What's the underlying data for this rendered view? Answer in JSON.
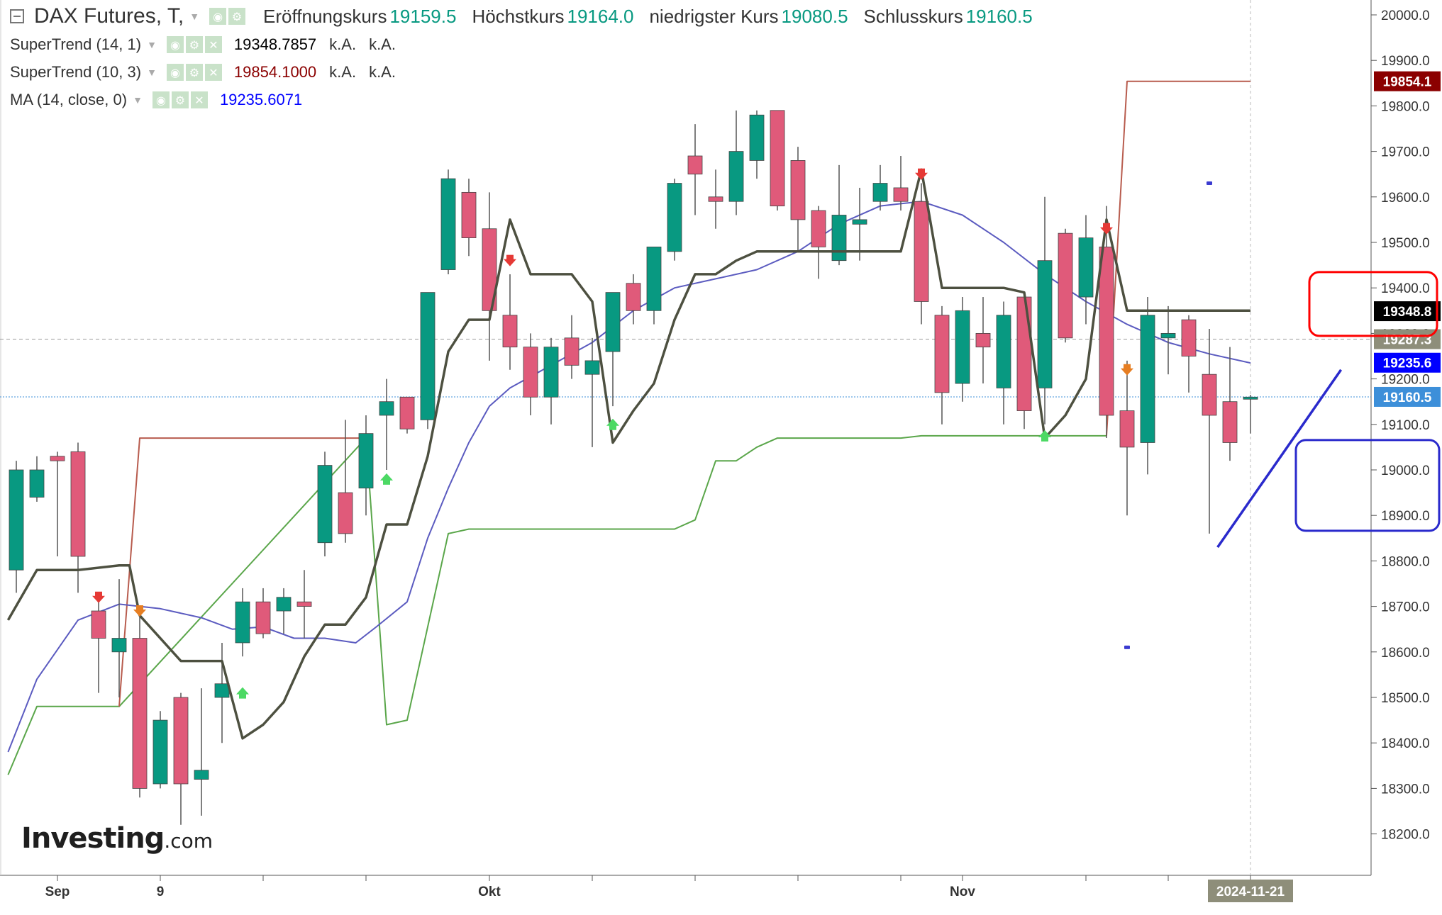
{
  "header": {
    "symbol": "DAX Futures, T,",
    "open_label": "Eröffnungskurs",
    "open": "19159.5",
    "high_label": "Höchstkurs",
    "high": "19164.0",
    "low_label": "niedrigster Kurs",
    "low": "19080.5",
    "close_label": "Schlusskurs",
    "close": "19160.5"
  },
  "indicators": [
    {
      "name": "SuperTrend (14, 1)",
      "value": "19348.7857",
      "na1": "k.A.",
      "na2": "k.A.",
      "color": "#000000"
    },
    {
      "name": "SuperTrend (10, 3)",
      "value": "19854.1000",
      "na1": "k.A.",
      "na2": "k.A.",
      "color": "#8b0000"
    },
    {
      "name": "MA (14, close, 0)",
      "value": "19235.6071",
      "color": "#0000ff"
    }
  ],
  "logo": {
    "main": "Investing",
    "suffix": ".com"
  },
  "colors": {
    "up": "#089981",
    "down": "#e05a7a",
    "ma": "#5b5bc0",
    "st1": "#4d5040",
    "st2_up": "#5aa64a",
    "st2_down": "#b85c4e",
    "current_price": "#3d8fd9",
    "box_red": "#ff0000",
    "box_blue": "#2a2acc"
  },
  "chart_data": {
    "type": "candlestick",
    "title": "DAX Futures, T",
    "x_ticks": [
      {
        "label": "Sep",
        "index": 2
      },
      {
        "label": "9",
        "index": 7
      },
      {
        "label": "Okt",
        "index": 23
      },
      {
        "label": "Nov",
        "index": 46
      },
      {
        "label": "2024-11-21",
        "index": 60
      }
    ],
    "ylim": [
      18100,
      20050
    ],
    "y_ticks": [
      18200,
      18300,
      18400,
      18500,
      18600,
      18700,
      18800,
      18900,
      19000,
      19100,
      19200,
      19300,
      19400,
      19500,
      19600,
      19700,
      19800,
      19900,
      20000
    ],
    "y_tick_labels": [
      "18200.0",
      "18300.0",
      "18400.0",
      "18500.0",
      "18600.0",
      "18700.0",
      "18800.0",
      "18900.0",
      "19000.0",
      "19100.0",
      "19200.0",
      "19300.0",
      "19400.0",
      "19500.0",
      "19600.0",
      "19700.0",
      "19800.0",
      "19900.0",
      "20000.0"
    ],
    "candles": [
      {
        "o": 18780,
        "h": 19020,
        "l": 18730,
        "c": 19000
      },
      {
        "o": 18940,
        "h": 19030,
        "l": 18930,
        "c": 19000
      },
      {
        "o": 19030,
        "h": 19040,
        "l": 18810,
        "c": 19020
      },
      {
        "o": 19040,
        "h": 19060,
        "l": 18730,
        "c": 18810
      },
      {
        "o": 18690,
        "h": 18720,
        "l": 18510,
        "c": 18630
      },
      {
        "o": 18600,
        "h": 18760,
        "l": 18500,
        "c": 18630
      },
      {
        "o": 18630,
        "h": 18680,
        "l": 18280,
        "c": 18300
      },
      {
        "o": 18310,
        "h": 18470,
        "l": 18300,
        "c": 18450
      },
      {
        "o": 18500,
        "h": 18510,
        "l": 18220,
        "c": 18310
      },
      {
        "o": 18320,
        "h": 18520,
        "l": 18240,
        "c": 18340
      },
      {
        "o": 18500,
        "h": 18620,
        "l": 18400,
        "c": 18530
      },
      {
        "o": 18620,
        "h": 18740,
        "l": 18590,
        "c": 18710
      },
      {
        "o": 18710,
        "h": 18740,
        "l": 18630,
        "c": 18640
      },
      {
        "o": 18690,
        "h": 18740,
        "l": 18640,
        "c": 18720
      },
      {
        "o": 18710,
        "h": 18780,
        "l": 18630,
        "c": 18700
      },
      {
        "o": 18840,
        "h": 19040,
        "l": 18810,
        "c": 19010
      },
      {
        "o": 18950,
        "h": 19110,
        "l": 18840,
        "c": 18860
      },
      {
        "o": 18960,
        "h": 19120,
        "l": 18900,
        "c": 19080
      },
      {
        "o": 19120,
        "h": 19200,
        "l": 19000,
        "c": 19150
      },
      {
        "o": 19160,
        "h": 19160,
        "l": 19080,
        "c": 19090
      },
      {
        "o": 19110,
        "h": 19390,
        "l": 19090,
        "c": 19390
      },
      {
        "o": 19440,
        "h": 19660,
        "l": 19430,
        "c": 19640
      },
      {
        "o": 19610,
        "h": 19640,
        "l": 19470,
        "c": 19510
      },
      {
        "o": 19530,
        "h": 19610,
        "l": 19240,
        "c": 19350
      },
      {
        "o": 19340,
        "h": 19430,
        "l": 19220,
        "c": 19270
      },
      {
        "o": 19270,
        "h": 19300,
        "l": 19120,
        "c": 19160
      },
      {
        "o": 19160,
        "h": 19290,
        "l": 19100,
        "c": 19270
      },
      {
        "o": 19290,
        "h": 19340,
        "l": 19200,
        "c": 19230
      },
      {
        "o": 19210,
        "h": 19290,
        "l": 19050,
        "c": 19240
      },
      {
        "o": 19260,
        "h": 19390,
        "l": 19140,
        "c": 19390
      },
      {
        "o": 19410,
        "h": 19430,
        "l": 19320,
        "c": 19350
      },
      {
        "o": 19350,
        "h": 19490,
        "l": 19320,
        "c": 19490
      },
      {
        "o": 19480,
        "h": 19640,
        "l": 19460,
        "c": 19630
      },
      {
        "o": 19690,
        "h": 19760,
        "l": 19560,
        "c": 19650
      },
      {
        "o": 19600,
        "h": 19660,
        "l": 19530,
        "c": 19590
      },
      {
        "o": 19590,
        "h": 19790,
        "l": 19560,
        "c": 19700
      },
      {
        "o": 19680,
        "h": 19790,
        "l": 19640,
        "c": 19780
      },
      {
        "o": 19790,
        "h": 19790,
        "l": 19570,
        "c": 19580
      },
      {
        "o": 19680,
        "h": 19710,
        "l": 19480,
        "c": 19550
      },
      {
        "o": 19570,
        "h": 19580,
        "l": 19420,
        "c": 19490
      },
      {
        "o": 19460,
        "h": 19670,
        "l": 19450,
        "c": 19560
      },
      {
        "o": 19540,
        "h": 19620,
        "l": 19460,
        "c": 19550
      },
      {
        "o": 19590,
        "h": 19670,
        "l": 19570,
        "c": 19630
      },
      {
        "o": 19620,
        "h": 19690,
        "l": 19570,
        "c": 19590
      },
      {
        "o": 19590,
        "h": 19630,
        "l": 19320,
        "c": 19370
      },
      {
        "o": 19340,
        "h": 19360,
        "l": 19100,
        "c": 19170
      },
      {
        "o": 19190,
        "h": 19380,
        "l": 19150,
        "c": 19350
      },
      {
        "o": 19300,
        "h": 19380,
        "l": 19190,
        "c": 19270
      },
      {
        "o": 19180,
        "h": 19370,
        "l": 19100,
        "c": 19340
      },
      {
        "o": 19380,
        "h": 19390,
        "l": 19090,
        "c": 19130
      },
      {
        "o": 19180,
        "h": 19600,
        "l": 19100,
        "c": 19460
      },
      {
        "o": 19520,
        "h": 19530,
        "l": 19280,
        "c": 19290
      },
      {
        "o": 19380,
        "h": 19560,
        "l": 19320,
        "c": 19510
      },
      {
        "o": 19490,
        "h": 19580,
        "l": 19070,
        "c": 19120
      },
      {
        "o": 19130,
        "h": 19240,
        "l": 18900,
        "c": 19050
      },
      {
        "o": 19060,
        "h": 19380,
        "l": 18990,
        "c": 19340
      },
      {
        "o": 19290,
        "h": 19360,
        "l": 19210,
        "c": 19300
      },
      {
        "o": 19330,
        "h": 19340,
        "l": 19170,
        "c": 19250
      },
      {
        "o": 19210,
        "h": 19310,
        "l": 18860,
        "c": 19120
      },
      {
        "o": 19150,
        "h": 19270,
        "l": 19020,
        "c": 19060
      },
      {
        "o": 19160,
        "h": 19165,
        "l": 19080,
        "c": 19160
      }
    ],
    "ma_14": [
      {
        "i": -0.4,
        "v": 18380
      },
      {
        "i": 1,
        "v": 18540
      },
      {
        "i": 3,
        "v": 18670
      },
      {
        "i": 5,
        "v": 18705
      },
      {
        "i": 7,
        "v": 18695
      },
      {
        "i": 9,
        "v": 18675
      },
      {
        "i": 10.5,
        "v": 18650
      },
      {
        "i": 12,
        "v": 18655
      },
      {
        "i": 13.5,
        "v": 18630
      },
      {
        "i": 15,
        "v": 18630
      },
      {
        "i": 16.5,
        "v": 18620
      },
      {
        "i": 17.5,
        "v": 18655
      },
      {
        "i": 19,
        "v": 18710
      },
      {
        "i": 20,
        "v": 18850
      },
      {
        "i": 21,
        "v": 18960
      },
      {
        "i": 22,
        "v": 19060
      },
      {
        "i": 23,
        "v": 19140
      },
      {
        "i": 24,
        "v": 19180
      },
      {
        "i": 26,
        "v": 19230
      },
      {
        "i": 28,
        "v": 19280
      },
      {
        "i": 30,
        "v": 19350
      },
      {
        "i": 32,
        "v": 19400
      },
      {
        "i": 34,
        "v": 19420
      },
      {
        "i": 36,
        "v": 19440
      },
      {
        "i": 38,
        "v": 19480
      },
      {
        "i": 40,
        "v": 19540
      },
      {
        "i": 42,
        "v": 19580
      },
      {
        "i": 44,
        "v": 19590
      },
      {
        "i": 46,
        "v": 19560
      },
      {
        "i": 48,
        "v": 19500
      },
      {
        "i": 50,
        "v": 19430
      },
      {
        "i": 52,
        "v": 19370
      },
      {
        "i": 54,
        "v": 19320
      },
      {
        "i": 56,
        "v": 19280
      },
      {
        "i": 58,
        "v": 19255
      },
      {
        "i": 60,
        "v": 19235
      }
    ],
    "supertrend_14_1": [
      {
        "i": -0.4,
        "v": 18670
      },
      {
        "i": 1,
        "v": 18780
      },
      {
        "i": 3,
        "v": 18780
      },
      {
        "i": 5,
        "v": 18790
      },
      {
        "i": 5.5,
        "v": 18790
      },
      {
        "i": 6,
        "v": 18680
      },
      {
        "i": 8,
        "v": 18580
      },
      {
        "i": 10,
        "v": 18580
      },
      {
        "i": 11,
        "v": 18410
      },
      {
        "i": 12,
        "v": 18440
      },
      {
        "i": 13,
        "v": 18490
      },
      {
        "i": 14,
        "v": 18590
      },
      {
        "i": 15,
        "v": 18660
      },
      {
        "i": 16,
        "v": 18660
      },
      {
        "i": 17,
        "v": 18720
      },
      {
        "i": 18,
        "v": 18880
      },
      {
        "i": 19,
        "v": 18880
      },
      {
        "i": 20,
        "v": 19030
      },
      {
        "i": 21,
        "v": 19260
      },
      {
        "i": 22,
        "v": 19330
      },
      {
        "i": 23,
        "v": 19330
      },
      {
        "i": 24,
        "v": 19550
      },
      {
        "i": 25,
        "v": 19430
      },
      {
        "i": 27,
        "v": 19430
      },
      {
        "i": 28,
        "v": 19370
      },
      {
        "i": 29,
        "v": 19060
      },
      {
        "i": 30,
        "v": 19130
      },
      {
        "i": 31,
        "v": 19190
      },
      {
        "i": 32,
        "v": 19330
      },
      {
        "i": 33,
        "v": 19430
      },
      {
        "i": 34,
        "v": 19430
      },
      {
        "i": 35,
        "v": 19460
      },
      {
        "i": 36,
        "v": 19480
      },
      {
        "i": 37,
        "v": 19480
      },
      {
        "i": 43,
        "v": 19480
      },
      {
        "i": 44,
        "v": 19660
      },
      {
        "i": 45,
        "v": 19400
      },
      {
        "i": 48,
        "v": 19400
      },
      {
        "i": 49,
        "v": 19390
      },
      {
        "i": 50,
        "v": 19070
      },
      {
        "i": 51,
        "v": 19120
      },
      {
        "i": 52,
        "v": 19200
      },
      {
        "i": 53,
        "v": 19550
      },
      {
        "i": 54,
        "v": 19350
      },
      {
        "i": 60,
        "v": 19350
      }
    ],
    "supertrend_10_3_up": [
      {
        "i": -0.4,
        "v": 18330
      },
      {
        "i": 1,
        "v": 18480
      },
      {
        "i": 5,
        "v": 18480
      },
      {
        "i": 17,
        "v": 19070
      },
      {
        "i": 18,
        "v": 18440
      },
      {
        "i": 19,
        "v": 18450
      },
      {
        "i": 21,
        "v": 18860
      },
      {
        "i": 22,
        "v": 18870
      },
      {
        "i": 32,
        "v": 18870
      },
      {
        "i": 33,
        "v": 18890
      },
      {
        "i": 34,
        "v": 19020
      },
      {
        "i": 35,
        "v": 19020
      },
      {
        "i": 36,
        "v": 19050
      },
      {
        "i": 37,
        "v": 19070
      },
      {
        "i": 43,
        "v": 19070
      },
      {
        "i": 44,
        "v": 19075
      },
      {
        "i": 53,
        "v": 19075
      }
    ],
    "supertrend_10_3_down": [
      {
        "i": 5,
        "v": 18480
      },
      {
        "i": 6,
        "v": 19070
      },
      {
        "i": 17,
        "v": 19070
      }
    ],
    "supertrend_10_3_down2": [
      {
        "i": 53,
        "v": 19075
      },
      {
        "i": 54,
        "v": 19854
      },
      {
        "i": 60,
        "v": 19854
      }
    ],
    "arrows": [
      {
        "i": 4,
        "v": 18720,
        "dir": "down",
        "color": "#e53935"
      },
      {
        "i": 6,
        "v": 18690,
        "dir": "down",
        "color": "#e67e22"
      },
      {
        "i": 11,
        "v": 18510,
        "dir": "up",
        "color": "#4cd964"
      },
      {
        "i": 18,
        "v": 18980,
        "dir": "up",
        "color": "#4cd964"
      },
      {
        "i": 24,
        "v": 19460,
        "dir": "down",
        "color": "#e53935"
      },
      {
        "i": 29,
        "v": 19100,
        "dir": "up",
        "color": "#4cd964"
      },
      {
        "i": 44,
        "v": 19650,
        "dir": "down",
        "color": "#e53935"
      },
      {
        "i": 50,
        "v": 19075,
        "dir": "up",
        "color": "#4cd964"
      },
      {
        "i": 53,
        "v": 19530,
        "dir": "down",
        "color": "#e53935"
      },
      {
        "i": 54,
        "v": 19220,
        "dir": "down",
        "color": "#e67e22"
      }
    ],
    "dots": [
      {
        "i": 58,
        "v": 19630
      },
      {
        "i": 54,
        "v": 18610
      }
    ],
    "trendline": [
      {
        "i": 58.4,
        "v": 18830
      },
      {
        "i": 64.4,
        "v": 19220
      }
    ],
    "reference_line": {
      "value": 19287.3
    },
    "price_labels": [
      {
        "label": "19854.1",
        "value": 19854.1,
        "bg": "#8b0000"
      },
      {
        "label": "19348.8",
        "value": 19348.8,
        "bg": "#000000"
      },
      {
        "label": "19287.3",
        "value": 19287.3,
        "bg": "#8e8e7a"
      },
      {
        "label": "19235.6",
        "value": 19235.6,
        "bg": "#0000ff"
      },
      {
        "label": "19160.5",
        "value": 19160.5,
        "bg": "#3d8fd9"
      }
    ]
  }
}
